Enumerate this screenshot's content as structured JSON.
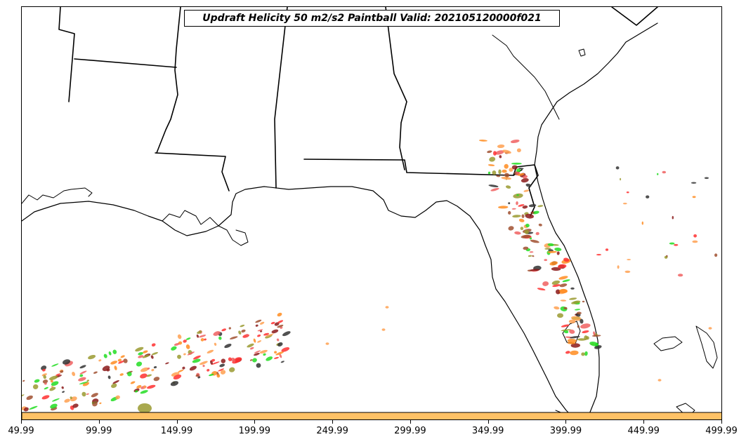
{
  "title": "Updraft Helicity 50 m2/s2 Paintball Valid: 202105120000f021",
  "x_ticks": [
    "49.99",
    "99.99",
    "149.99",
    "199.99",
    "249.99",
    "299.99",
    "349.99",
    "399.99",
    "449.99",
    "499.99"
  ],
  "colors": {
    "state_lines": "#000000",
    "coastline": "#000000",
    "colorbar_band": "#ffc266",
    "paint_red": "#ff3030",
    "paint_salmon": "#f06060",
    "paint_orange": "#ff8c20",
    "paint_light_orange": "#ffa050",
    "paint_green": "#22dd22",
    "paint_olive": "#9a9a30",
    "paint_dark_red": "#8b1a1a",
    "paint_dark": "#333333",
    "paint_brown": "#a05030"
  }
}
